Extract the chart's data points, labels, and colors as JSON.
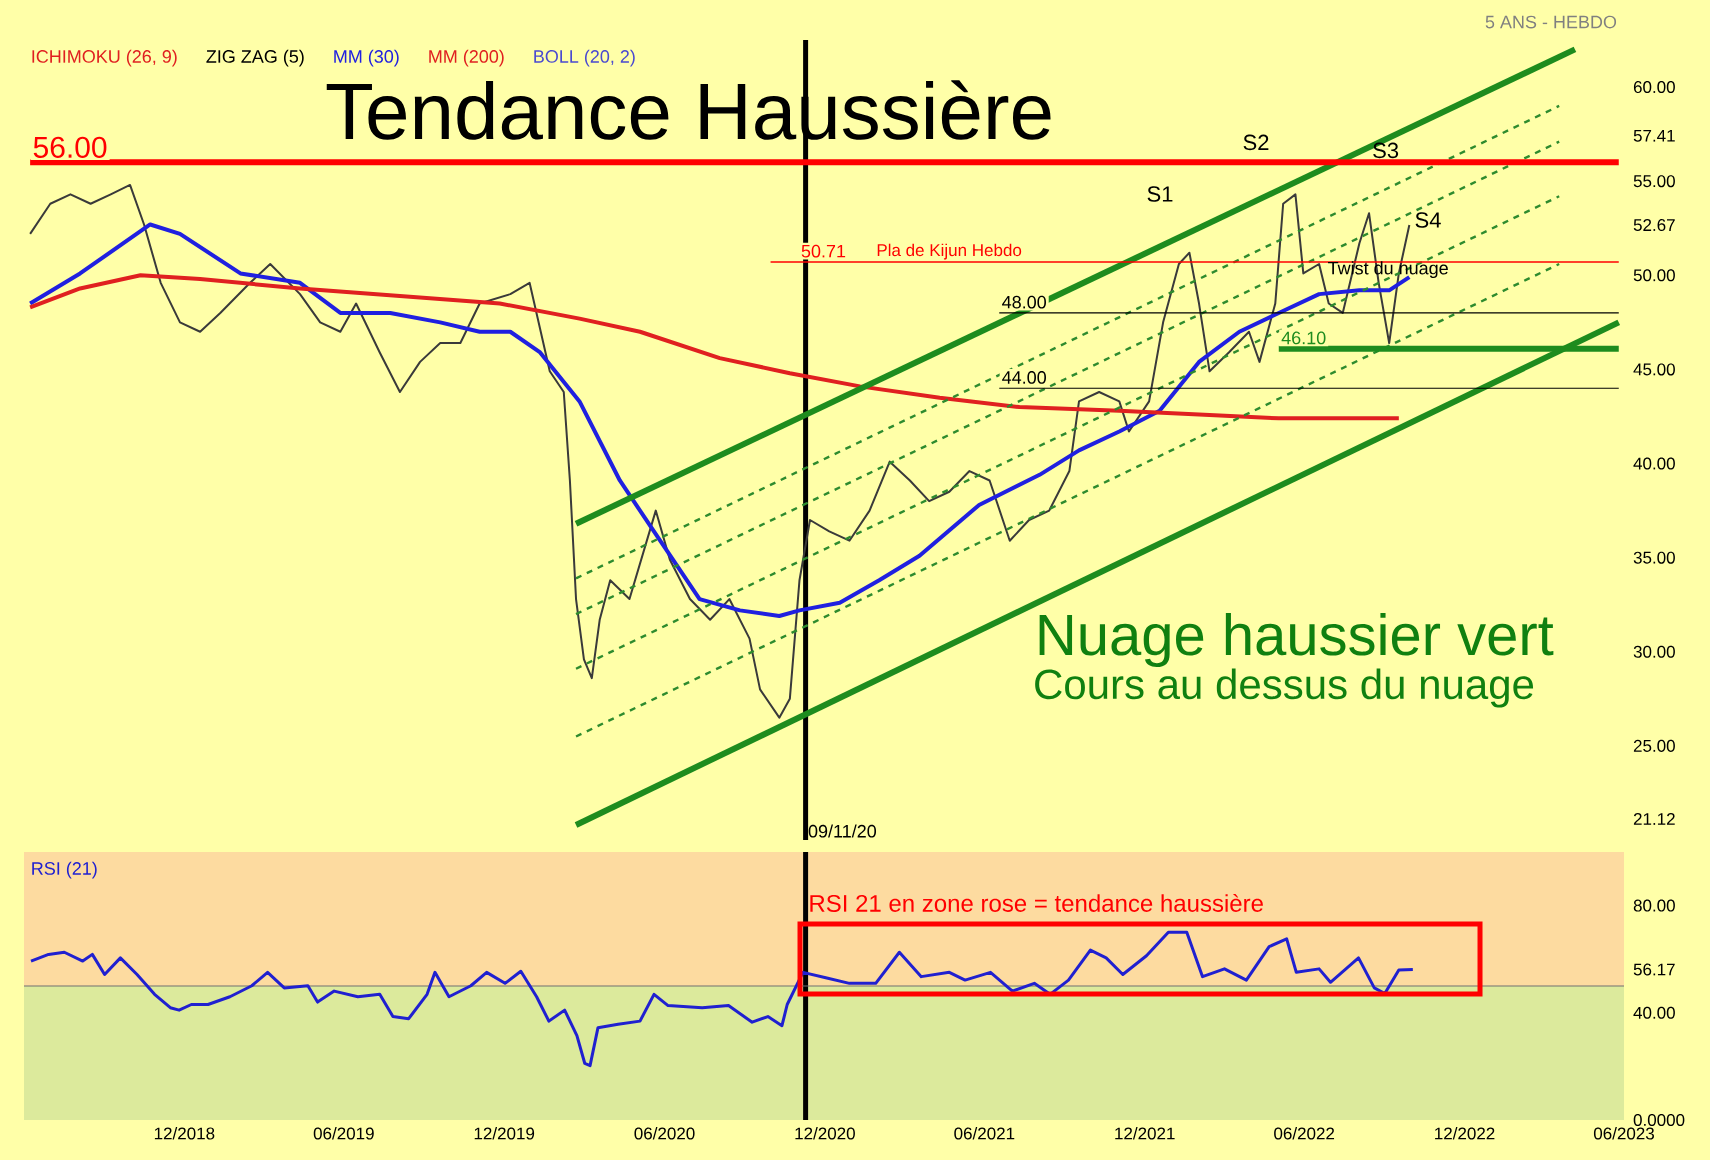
{
  "chart_data": [
    {
      "type": "line",
      "subtitle": "5 ANS - HEBDO",
      "tick_labels": "y",
      "xlim": [
        "2018-06-01",
        "2023-06-01"
      ],
      "ylim": [
        20,
        62.5
      ],
      "yticks": [
        {
          "value": 25,
          "label": "25.00"
        },
        {
          "value": 30,
          "label": "30.00"
        },
        {
          "value": 35,
          "label": "35.00"
        },
        {
          "value": 40,
          "label": "40.00"
        },
        {
          "value": 45,
          "label": "45.00"
        },
        {
          "value": 50,
          "label": "50.00"
        },
        {
          "value": 52.67,
          "label": "52.67"
        },
        {
          "value": 55,
          "label": "55.00"
        },
        {
          "value": 57.41,
          "label": "57.41"
        },
        {
          "value": 60,
          "label": "60.00"
        },
        {
          "value": 21.12,
          "label": "21.12"
        }
      ],
      "annotations": [
        "ICHIMOKU (26, 9)",
        "ZIG ZAG (5)",
        "BOLL (20, 2)",
        "Tendance Haussière",
        "Nuage haussier vert",
        "Cours au dessus du nuage",
        "S1",
        "S2",
        "S3",
        "S4",
        {
          "text": "Pla de Kijun Hebdo",
          "x": "2021-01-26",
          "y": 50.71
        },
        {
          "text": "Twist du nuage",
          "x": "2022-06-25",
          "y": 50.3
        }
      ],
      "ref_lines": [
        {
          "axis": "x",
          "value": "2020-11-09",
          "label": "09/11/20",
          "color": "#000000"
        }
      ],
      "series": [
        {
          "color": "#3a3a3a",
          "x": [
            "2018-06-08",
            "2018-07-01",
            "2018-07-24",
            "2018-08-16",
            "2018-09-08",
            "2018-09-30",
            "2018-10-16",
            "2018-11-04",
            "2018-11-26",
            "2018-12-19",
            "2019-01-11",
            "2019-02-14",
            "2019-03-09",
            "2019-04-12",
            "2019-05-05",
            "2019-05-28",
            "2019-06-15",
            "2019-07-12",
            "2019-08-04",
            "2019-08-27",
            "2019-09-19",
            "2019-10-12",
            "2019-11-03",
            "2019-12-08",
            "2019-12-30",
            "2020-01-22",
            "2020-02-07",
            "2020-02-14",
            "2020-02-21",
            "2020-03-01",
            "2020-03-10",
            "2020-03-19",
            "2020-03-31",
            "2020-04-22",
            "2020-05-22",
            "2020-06-07",
            "2020-06-30",
            "2020-07-23",
            "2020-08-14",
            "2020-09-06",
            "2020-09-18",
            "2020-10-10",
            "2020-10-22",
            "2020-11-02",
            "2020-11-14",
            "2020-12-06",
            "2020-12-29",
            "2021-01-21",
            "2021-02-13",
            "2021-03-08",
            "2021-03-30",
            "2021-04-22",
            "2021-05-15",
            "2021-06-07",
            "2021-06-30",
            "2021-07-22",
            "2021-08-14",
            "2021-09-06",
            "2021-09-17",
            "2021-10-10",
            "2021-11-02",
            "2021-11-13",
            "2021-12-06",
            "2021-12-22",
            "2022-01-09",
            "2022-01-21",
            "2022-02-01",
            "2022-02-13",
            "2022-03-07",
            "2022-03-30",
            "2022-04-11",
            "2022-04-29",
            "2022-05-08",
            "2022-05-22",
            "2022-05-31",
            "2022-06-18",
            "2022-06-29",
            "2022-07-15",
            "2022-08-03",
            "2022-08-14",
            "2022-08-25",
            "2022-09-06",
            "2022-09-17",
            "2022-09-29"
          ],
          "values": [
            52.2,
            53.8,
            54.3,
            53.8,
            54.3,
            54.8,
            52.7,
            49.6,
            47.5,
            47.0,
            48.0,
            49.6,
            50.6,
            49.0,
            47.5,
            47.0,
            48.5,
            45.9,
            43.8,
            45.4,
            46.4,
            46.4,
            48.5,
            49.0,
            49.6,
            44.9,
            43.8,
            39.1,
            32.8,
            29.6,
            28.6,
            31.7,
            33.8,
            32.8,
            37.5,
            34.9,
            32.8,
            31.7,
            32.8,
            30.7,
            28.0,
            26.5,
            27.5,
            33.8,
            37.0,
            36.4,
            35.9,
            37.5,
            40.1,
            39.1,
            38.0,
            38.5,
            39.6,
            39.1,
            35.9,
            37.0,
            37.5,
            39.6,
            43.3,
            43.8,
            43.3,
            41.7,
            43.3,
            47.5,
            50.6,
            51.2,
            48.5,
            44.9,
            45.9,
            47.0,
            45.4,
            48.5,
            53.8,
            54.3,
            50.1,
            50.6,
            48.5,
            48.0,
            51.7,
            53.3,
            49.6,
            46.4,
            50.1,
            52.67
          ]
        },
        {
          "name": "MM (30)",
          "color": "#2020e0",
          "x": [
            "2018-06-08",
            "2018-08-04",
            "2018-10-23",
            "2018-11-26",
            "2019-02-03",
            "2019-04-12",
            "2019-05-28",
            "2019-07-24",
            "2019-09-19",
            "2019-11-03",
            "2019-12-08",
            "2020-01-11",
            "2020-02-25",
            "2020-04-11",
            "2020-05-27",
            "2020-07-11",
            "2020-08-26",
            "2020-10-10",
            "2020-11-02",
            "2020-12-18",
            "2021-02-01",
            "2021-03-19",
            "2021-05-26",
            "2021-08-03",
            "2021-09-17",
            "2021-11-02",
            "2021-12-18",
            "2022-02-01",
            "2022-03-19",
            "2022-05-03",
            "2022-06-18",
            "2022-08-03",
            "2022-09-06",
            "2022-09-29"
          ],
          "values": [
            48.5,
            50.1,
            52.7,
            52.2,
            50.1,
            49.6,
            48.0,
            48.0,
            47.5,
            47.0,
            47.0,
            45.9,
            43.3,
            39.1,
            35.9,
            32.8,
            32.2,
            31.9,
            32.2,
            32.6,
            33.8,
            35.1,
            37.8,
            39.4,
            40.7,
            41.7,
            42.8,
            45.4,
            47.0,
            48.0,
            49.0,
            49.2,
            49.2,
            49.9
          ]
        },
        {
          "name": "MM (200)",
          "color": "#e02020",
          "x": [
            "2018-06-08",
            "2018-08-04",
            "2018-10-12",
            "2018-12-19",
            "2019-04-12",
            "2019-08-04",
            "2019-11-26",
            "2020-02-25",
            "2020-05-04",
            "2020-08-03",
            "2020-10-22",
            "2021-01-10",
            "2021-04-11",
            "2021-07-11",
            "2021-11-02",
            "2022-02-01",
            "2022-05-03",
            "2022-09-17"
          ],
          "values": [
            48.3,
            49.3,
            50.0,
            49.8,
            49.3,
            48.9,
            48.5,
            47.7,
            47.0,
            45.6,
            44.8,
            44.1,
            43.5,
            43.0,
            42.8,
            42.6,
            42.4,
            42.4
          ]
        },
        {
          "color": "#1e8c1e",
          "x": [
            "2020-02-21",
            "2023-04-06"
          ],
          "values": [
            36.8,
            62.0
          ]
        },
        {
          "color": "#1e8c1e",
          "x": [
            "2020-02-21",
            "2023-05-26"
          ],
          "values": [
            20.8,
            47.5
          ]
        },
        {
          "color": "#2e8b2e",
          "line_style": "dashed",
          "x": [
            "2020-02-21",
            "2023-03-19"
          ],
          "values": [
            33.9,
            59.0
          ]
        },
        {
          "color": "#2e8b2e",
          "line_style": "dashed",
          "x": [
            "2020-02-21",
            "2023-03-19"
          ],
          "values": [
            32.0,
            57.1
          ]
        },
        {
          "color": "#2e8b2e",
          "line_style": "dashed",
          "x": [
            "2020-02-21",
            "2023-03-19"
          ],
          "values": [
            29.1,
            54.2
          ]
        },
        {
          "color": "#2e8b2e",
          "line_style": "dashed",
          "x": [
            "2020-02-21",
            "2023-03-19"
          ],
          "values": [
            25.5,
            50.6
          ]
        },
        {
          "color": "#ff0000",
          "x": [
            "2018-06-08",
            "2023-05-26"
          ],
          "values": [
            56.0,
            56.0
          ],
          "value_labels": [
            "56.00",
            null
          ]
        },
        {
          "color": "#ff0000",
          "x": [
            "2020-09-30",
            "2023-05-26"
          ],
          "values": [
            50.71,
            50.71
          ],
          "value_labels": [
            "50.71",
            null
          ]
        },
        {
          "color": "#000000",
          "x": [
            "2021-06-18",
            "2023-05-26"
          ],
          "values": [
            48.0,
            48.0
          ],
          "value_labels": [
            "48.00",
            null
          ]
        },
        {
          "color": "#000000",
          "x": [
            "2021-06-18",
            "2023-05-26"
          ],
          "values": [
            44.0,
            44.0
          ],
          "value_labels": [
            "44.00",
            null
          ]
        },
        {
          "color": "#1e8c1e",
          "x": [
            "2022-05-03",
            "2023-05-26"
          ],
          "values": [
            46.1,
            46.1
          ],
          "value_labels": [
            "46.10",
            null
          ]
        }
      ]
    },
    {
      "type": "line",
      "legend": "top left",
      "xlim": [
        "2018-06-01",
        "2023-06-01"
      ],
      "ylim": [
        0,
        100
      ],
      "xticks": [
        {
          "value": "2018-12-01",
          "label": "12/2018"
        },
        {
          "value": "2019-06-01",
          "label": "06/2019"
        },
        {
          "value": "2019-12-01",
          "label": "12/2019"
        },
        {
          "value": "2020-06-01",
          "label": "06/2020"
        },
        {
          "value": "2020-12-01",
          "label": "12/2020"
        },
        {
          "value": "2021-06-01",
          "label": "06/2021"
        },
        {
          "value": "2021-12-01",
          "label": "12/2021"
        },
        {
          "value": "2022-06-01",
          "label": "06/2022"
        },
        {
          "value": "2022-12-01",
          "label": "12/2022"
        },
        {
          "value": "2023-06-01",
          "label": "06/2023"
        }
      ],
      "yticks": [
        {
          "value": 0,
          "label": "0.0000"
        },
        {
          "value": 40,
          "label": "40.00"
        },
        {
          "value": 56.17,
          "label": "56.17"
        },
        {
          "value": 80,
          "label": "80.00"
        }
      ],
      "annotations": [
        "RSI 21 en zone rose = tendance haussière"
      ],
      "bands": [
        {
          "axis": "y",
          "from": 50,
          "to": 100,
          "color": "#fddba0"
        },
        {
          "axis": "y",
          "from": 0,
          "to": 50,
          "color": "#dcea9c"
        }
      ],
      "ref_lines": [
        {
          "axis": "x",
          "value": "2020-11-09",
          "color": "#000000"
        },
        {
          "axis": "y",
          "value": 50,
          "color": "#707070"
        }
      ],
      "series": [
        {
          "name": "RSI (21)",
          "color": "#2020d0",
          "x": [
            "2018-06-09",
            "2018-06-29",
            "2018-07-17",
            "2018-08-07",
            "2018-08-18",
            "2018-09-01",
            "2018-09-19",
            "2018-10-08",
            "2018-10-28",
            "2018-11-15",
            "2018-11-25",
            "2018-12-09",
            "2018-12-28",
            "2019-01-22",
            "2019-02-16",
            "2019-03-06",
            "2019-03-25",
            "2019-04-21",
            "2019-05-02",
            "2019-05-21",
            "2019-06-17",
            "2019-07-12",
            "2019-07-27",
            "2019-08-14",
            "2019-09-04",
            "2019-09-13",
            "2019-09-29",
            "2019-10-24",
            "2019-11-11",
            "2019-12-02",
            "2019-12-20",
            "2020-01-07",
            "2020-01-21",
            "2020-02-08",
            "2020-02-22",
            "2020-03-02",
            "2020-03-08",
            "2020-03-17",
            "2020-04-09",
            "2020-05-04",
            "2020-05-20",
            "2020-06-05",
            "2020-07-14",
            "2020-08-13",
            "2020-09-09",
            "2020-09-27",
            "2020-10-13",
            "2020-10-19",
            "2020-11-06",
            "2020-12-02",
            "2020-12-29",
            "2021-01-28",
            "2021-02-24",
            "2021-03-21",
            "2021-04-22",
            "2021-05-10",
            "2021-06-08",
            "2021-07-03",
            "2021-07-28",
            "2021-08-15",
            "2021-09-05",
            "2021-09-30",
            "2021-10-18",
            "2021-11-06",
            "2021-12-03",
            "2021-12-28",
            "2022-01-18",
            "2022-02-05",
            "2022-03-02",
            "2022-03-27",
            "2022-04-22",
            "2022-05-12",
            "2022-05-23",
            "2022-06-18",
            "2022-07-01",
            "2022-08-02",
            "2022-08-20",
            "2022-09-01",
            "2022-09-17",
            "2022-10-03"
          ],
          "values": [
            59.3,
            61.8,
            62.6,
            59.3,
            61.8,
            54.3,
            60.5,
            54.3,
            46.9,
            41.9,
            41.0,
            43.1,
            43.1,
            46.0,
            50.1,
            55.1,
            49.3,
            50.1,
            44.0,
            48.1,
            46.0,
            46.9,
            38.6,
            37.8,
            46.9,
            55.1,
            46.0,
            50.1,
            55.1,
            51.0,
            55.5,
            46.0,
            36.9,
            41.0,
            31.5,
            21.1,
            20.3,
            34.4,
            35.7,
            36.9,
            46.9,
            42.7,
            41.9,
            42.7,
            36.5,
            38.6,
            35.2,
            43.1,
            55.1,
            53.1,
            51.0,
            51.0,
            62.6,
            53.5,
            55.1,
            52.2,
            55.1,
            48.1,
            51.0,
            46.9,
            52.2,
            63.4,
            60.5,
            54.3,
            61.3,
            70.1,
            70.1,
            53.5,
            56.4,
            52.2,
            64.7,
            67.6,
            55.1,
            56.4,
            51.4,
            60.5,
            49.3,
            47.2,
            56.0,
            56.17
          ]
        }
      ]
    }
  ]
}
